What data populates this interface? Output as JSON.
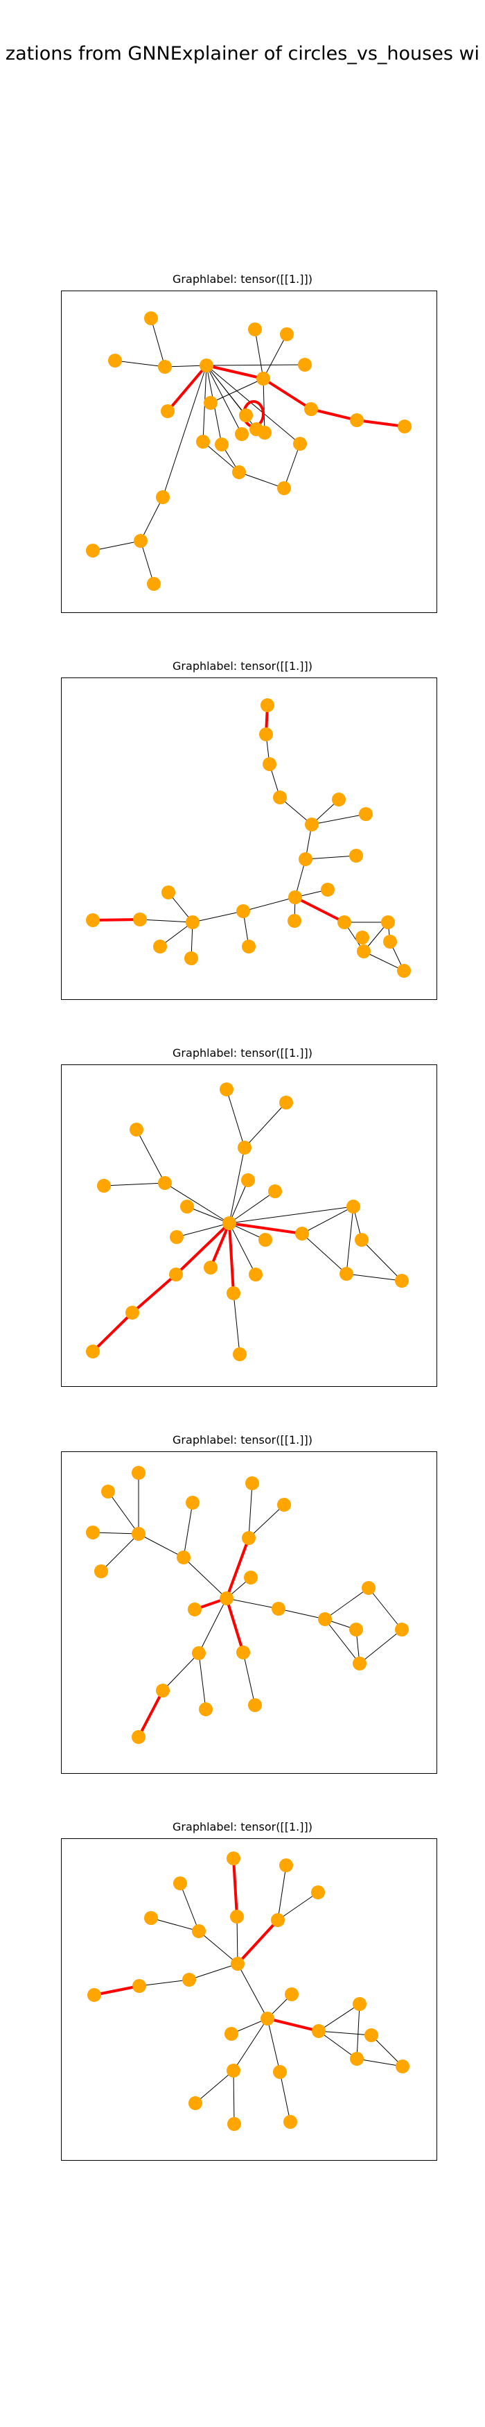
{
  "title": "zations from GNNExplainer of circles_vs_houses wi",
  "colors": {
    "node": "#FFA500",
    "edge": "#000000",
    "highlight": "#FF0000"
  },
  "panels": [
    {
      "title": "Graphlabel: tensor([[1.]])"
    },
    {
      "title": "Graphlabel: tensor([[1.]])"
    },
    {
      "title": "Graphlabel: tensor([[1.]])"
    },
    {
      "title": "Graphlabel: tensor([[1.]])"
    },
    {
      "title": "Graphlabel: tensor([[1.]])"
    }
  ]
}
